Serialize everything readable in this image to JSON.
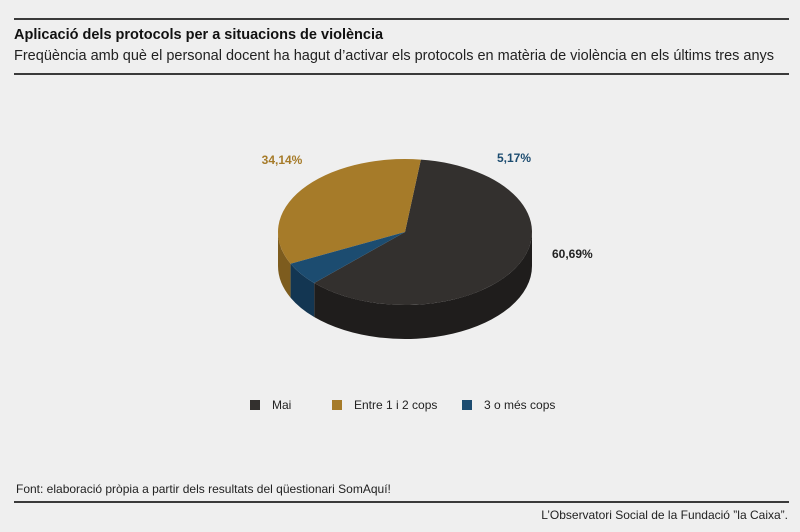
{
  "header": {
    "title": "Aplicació dels protocols per a situacions de violència",
    "subtitle": "Freqüència amb què el personal docent ha hagut d’activar els protocols en matèria de violència en els últims tres anys"
  },
  "chart_data": {
    "type": "pie",
    "title": "Aplicació dels protocols per a situacions de violència",
    "subtitle": "Freqüència amb què el personal docent ha hagut d’activar els protocols en matèria de violència en els últims tres anys",
    "categories": [
      "Mai",
      "Entre 1 i 2 cops",
      "3 o més cops"
    ],
    "values": [
      60.69,
      34.14,
      5.17
    ],
    "value_labels": [
      "60,69%",
      "34,14%",
      "5,17%"
    ],
    "colors": [
      "#33302e",
      "#a67b29",
      "#1c4c70"
    ],
    "legend_position": "bottom"
  },
  "footer": {
    "source": "Font: elaboració pròpia a partir dels resultats del qüestionari SomAquí!",
    "credit": "L’Observatori Social de la Fundació ”la Caixa”."
  }
}
